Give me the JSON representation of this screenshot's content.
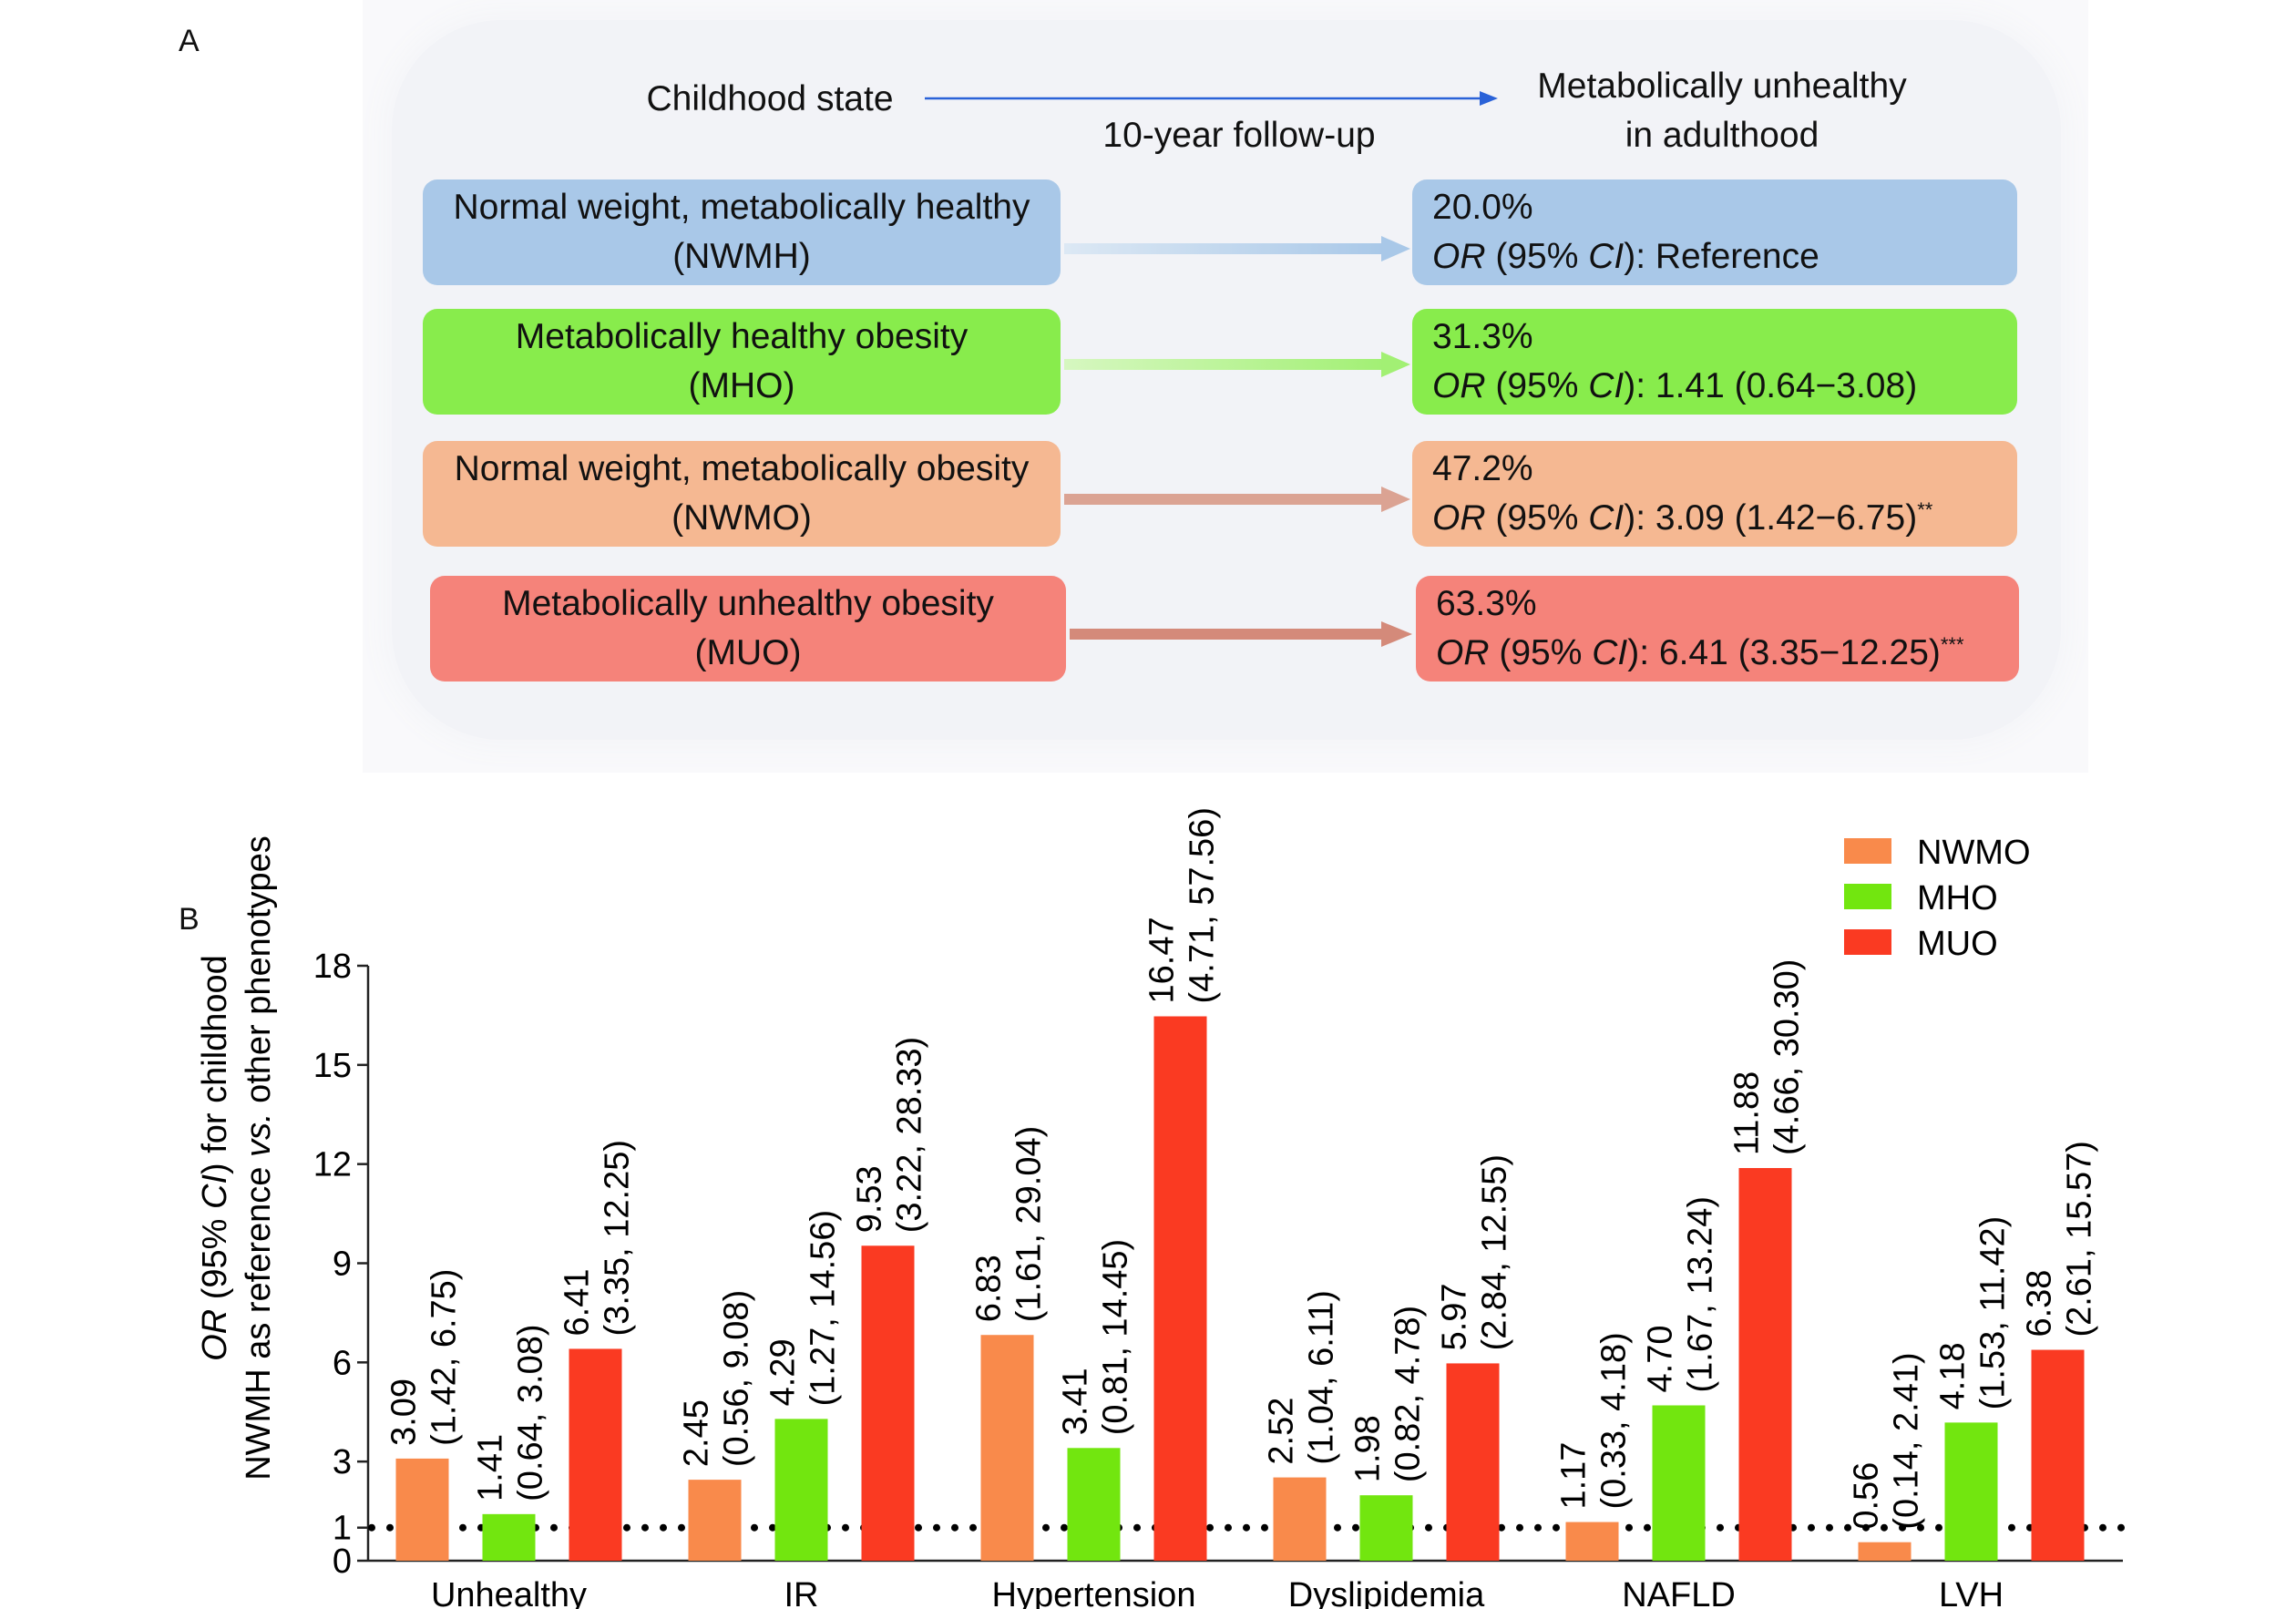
{
  "panel_a": {
    "label": "A",
    "header_left": "Childhood state",
    "header_mid": "10-year follow-up",
    "header_right_line1": "Metabolically unhealthy",
    "header_right_line2": "in adulthood",
    "rows": [
      {
        "left_line1": "Normal weight, metabolically healthy",
        "left_line2": "(NWMH)",
        "pct": "20.0%",
        "or_prefix": "OR",
        "ci_open": " (95% ",
        "ci": "CI",
        "ci_close": "): Reference",
        "stars": "",
        "color": "#a9c8e8"
      },
      {
        "left_line1": "Metabolically healthy obesity",
        "left_line2": "(MHO)",
        "pct": "31.3%",
        "or_prefix": "OR",
        "ci_open": " (95% ",
        "ci": "CI",
        "ci_close": "): 1.41 (0.64−3.08)",
        "stars": "",
        "color": "#88ec4c"
      },
      {
        "left_line1": "Normal weight, metabolically obesity",
        "left_line2": "(NWMO)",
        "pct": "47.2%",
        "or_prefix": "OR",
        "ci_open": " (95% ",
        "ci": "CI",
        "ci_close": "): 3.09 (1.42−6.75)",
        "stars": "**",
        "color": "#f5b892"
      },
      {
        "left_line1": "Metabolically unhealthy obesity",
        "left_line2": "(MUO)",
        "pct": "63.3%",
        "or_prefix": "OR",
        "ci_open": " (95% ",
        "ci": "CI",
        "ci_close": "): 6.41 (3.35−12.25)",
        "stars": "***",
        "color": "#f5837a"
      }
    ]
  },
  "chart_data": {
    "type": "bar",
    "label": "B",
    "ylabel_line1_italic": "OR",
    "ylabel_line1_mid": " (95% ",
    "ylabel_line1_italic2": "CI",
    "ylabel_line1_end": ") for childhood",
    "ylabel_line2_start": "NWMH as reference ",
    "ylabel_line2_italic": "vs.",
    "ylabel_line2_end": " other phenotypes",
    "ylim": [
      0,
      18
    ],
    "yticks": [
      "0",
      "1",
      "3",
      "6",
      "9",
      "12",
      "15",
      "18"
    ],
    "reference_line": 1,
    "legend_position": "top-right",
    "categories": [
      "Unhealthy",
      "IR",
      "Hypertension",
      "Dyslipidemia",
      "NAFLD",
      "LVH"
    ],
    "series": [
      {
        "name": "NWMO",
        "color": "#f98a4b",
        "values": [
          3.09,
          2.45,
          6.83,
          2.52,
          1.17,
          0.56
        ],
        "labels": [
          "3.09",
          "2.45",
          "6.83",
          "2.52",
          "1.17",
          "0.56"
        ],
        "ci": [
          "(1.42, 6.75)",
          "(0.56, 9.08)",
          "(1.61, 29.04)",
          "(1.04, 6.11)",
          "(0.33, 4.18)",
          "(0.14, 2.41)"
        ]
      },
      {
        "name": "MHO",
        "color": "#72e60f",
        "values": [
          1.41,
          4.29,
          3.41,
          1.98,
          4.7,
          4.18
        ],
        "labels": [
          "1.41",
          "4.29",
          "3.41",
          "1.98",
          "4.70",
          "4.18"
        ],
        "ci": [
          "(0.64, 3.08)",
          "(1.27, 14.56)",
          "(0.81, 14.45)",
          "(0.82, 4.78)",
          "(1.67, 13.24)",
          "(1.53, 11.42)"
        ]
      },
      {
        "name": "MUO",
        "color": "#fa3a22",
        "values": [
          6.41,
          9.53,
          16.47,
          5.97,
          11.88,
          6.38
        ],
        "labels": [
          "6.41",
          "9.53",
          "16.47",
          "5.97",
          "11.88",
          "6.38"
        ],
        "ci": [
          "(3.35, 12.25)",
          "(3.22, 28.33)",
          "(4.71, 57.56)",
          "(2.84, 12.55)",
          "(4.66, 30.30)",
          "(2.61, 15.57)"
        ]
      }
    ]
  }
}
